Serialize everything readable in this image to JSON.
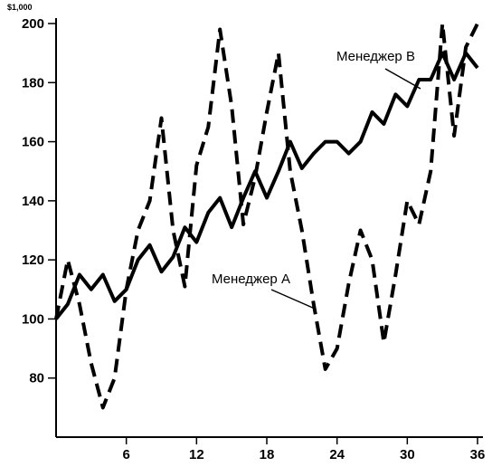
{
  "chart_data": {
    "type": "line",
    "unit_label": "$1,000",
    "xlim": [
      0,
      36
    ],
    "ylim": [
      60,
      200
    ],
    "x_ticks": [
      6,
      12,
      18,
      24,
      30,
      36
    ],
    "y_ticks": [
      80,
      100,
      120,
      140,
      160,
      180,
      200
    ],
    "grid": false,
    "series": [
      {
        "name": "Менеджер A",
        "style": "dashed",
        "color": "#000000",
        "x": [
          0,
          1,
          2,
          3,
          4,
          5,
          6,
          7,
          8,
          9,
          10,
          11,
          12,
          13,
          14,
          15,
          16,
          17,
          18,
          19,
          20,
          21,
          22,
          23,
          24,
          25,
          26,
          27,
          28,
          29,
          30,
          31,
          32,
          33,
          34,
          35,
          36
        ],
        "values": [
          100,
          120,
          105,
          85,
          70,
          80,
          110,
          130,
          140,
          168,
          130,
          111,
          152,
          165,
          198,
          172,
          132,
          148,
          170,
          190,
          150,
          130,
          105,
          83,
          90,
          112,
          130,
          120,
          92,
          115,
          140,
          132,
          150,
          200,
          162,
          192,
          200
        ]
      },
      {
        "name": "Менеджер B",
        "style": "solid",
        "color": "#000000",
        "x": [
          0,
          1,
          2,
          3,
          4,
          5,
          6,
          7,
          8,
          9,
          10,
          11,
          12,
          13,
          14,
          15,
          16,
          17,
          18,
          19,
          20,
          21,
          22,
          23,
          24,
          25,
          26,
          27,
          28,
          29,
          30,
          31,
          32,
          33,
          34,
          35,
          36
        ],
        "values": [
          100,
          105,
          115,
          110,
          115,
          106,
          110,
          120,
          125,
          116,
          121,
          131,
          126,
          136,
          141,
          131,
          141,
          150,
          141,
          150,
          160,
          151,
          156,
          160,
          160,
          156,
          160,
          170,
          166,
          176,
          172,
          181,
          181,
          190,
          181,
          190,
          185
        ]
      }
    ],
    "annotations": [
      {
        "text": "Менеджер B",
        "series": "Менеджер B",
        "x": 32,
        "y": 173
      },
      {
        "text": "Менеджер A",
        "series": "Менеджер A",
        "x": 22,
        "y": 102
      }
    ]
  }
}
